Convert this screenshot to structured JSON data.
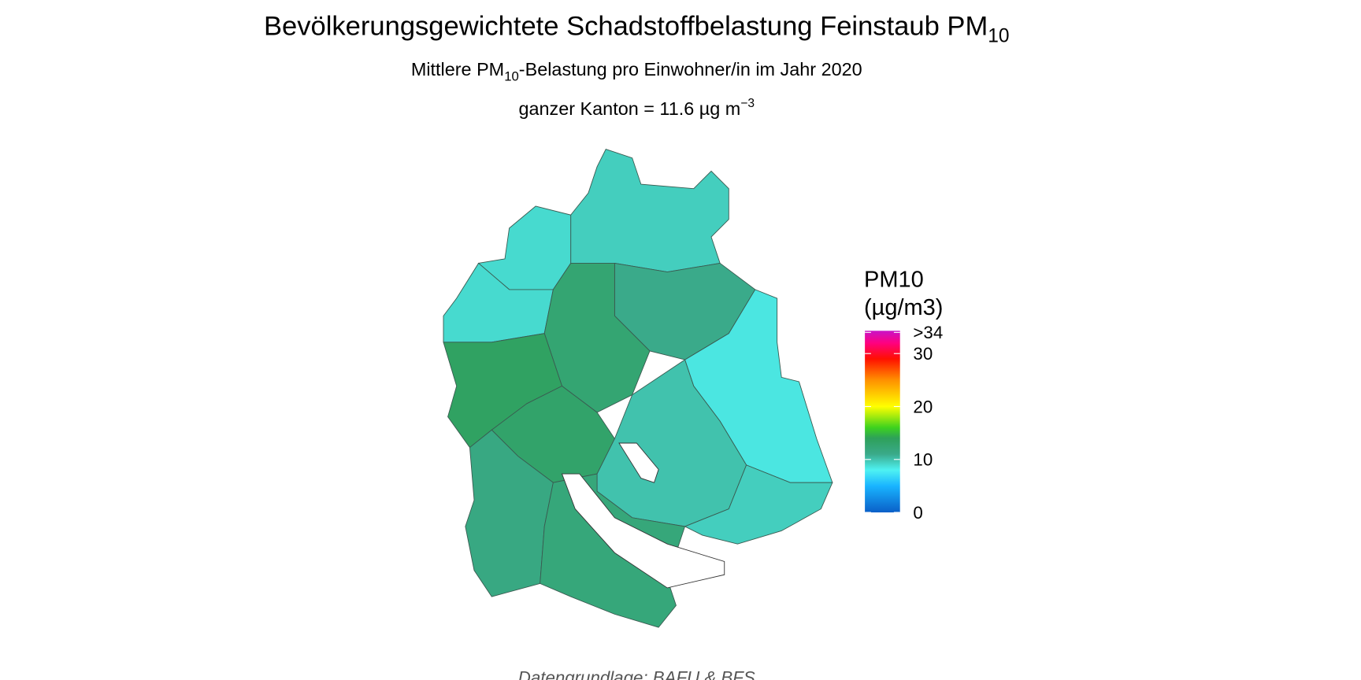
{
  "title": {
    "text": "Bevölkerungsgewichtete Schadstoffbelastung Feinstaub PM",
    "subscript": "10"
  },
  "subtitle": {
    "before": "Mittlere PM",
    "subscript": "10",
    "after": "-Belastung pro Einwohner/in im Jahr 2020"
  },
  "subtitle2": {
    "text": "ganzer Kanton = 11.6 µg m",
    "superscript": "−3"
  },
  "caption": "Datengrundlage: BAFU & BFS",
  "chart_data": {
    "type": "choropleth",
    "legend_title": [
      "PM10",
      "(µg/m3)"
    ],
    "colorscale": [
      [
        0,
        "#0a5fc8"
      ],
      [
        5,
        "#19b4ff"
      ],
      [
        8,
        "#4ef2f2"
      ],
      [
        11,
        "#3aaa8a"
      ],
      [
        14,
        "#2ea05a"
      ],
      [
        16,
        "#3cd21e"
      ],
      [
        20,
        "#ffff00"
      ],
      [
        25,
        "#ff9000"
      ],
      [
        29,
        "#ff1000"
      ],
      [
        32,
        "#ff0080"
      ],
      [
        34.3,
        "#c814c8"
      ]
    ],
    "zlim": [
      0,
      34.3
    ],
    "zticks": [
      0,
      10,
      20,
      30,
      {
        "value": 34,
        "label": ">34"
      }
    ],
    "values": [
      9.5,
      9,
      9,
      11,
      8.5,
      12.5,
      13.5,
      13,
      10,
      9.5,
      11.5,
      12
    ]
  }
}
